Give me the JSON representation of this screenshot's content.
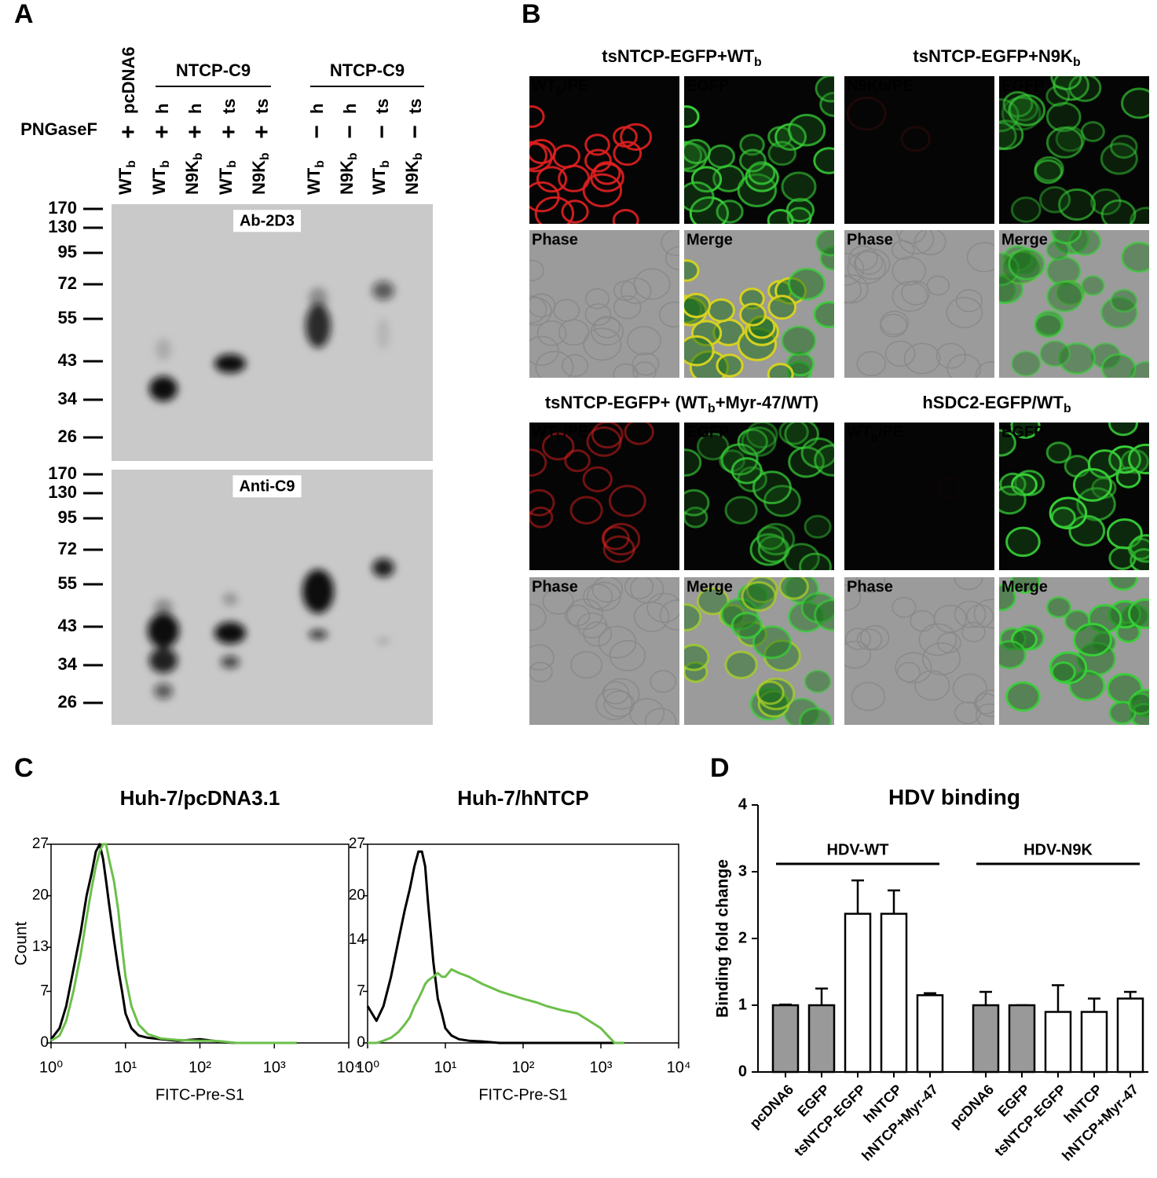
{
  "panel_a": {
    "label": "A",
    "row_label": "PNGaseF",
    "group_headers": [
      {
        "name": "NTCP-C9",
        "from": 1,
        "to": 4
      },
      {
        "name": "NTCP-C9",
        "from": 5,
        "to": 8
      }
    ],
    "lanes": [
      {
        "construct": "pcDNA6",
        "pngase": "+",
        "sample": [
          "WT",
          "b"
        ]
      },
      {
        "construct": "h",
        "pngase": "+",
        "sample": [
          "WT",
          "b"
        ]
      },
      {
        "construct": "h",
        "pngase": "+",
        "sample": [
          "N9K",
          "b"
        ]
      },
      {
        "construct": "ts",
        "pngase": "+",
        "sample": [
          "WT",
          "b"
        ]
      },
      {
        "construct": "ts",
        "pngase": "+",
        "sample": [
          "N9K",
          "b"
        ]
      },
      {
        "construct": "h",
        "pngase": "−",
        "sample": [
          "WT",
          "b"
        ]
      },
      {
        "construct": "h",
        "pngase": "−",
        "sample": [
          "N9K",
          "b"
        ]
      },
      {
        "construct": "ts",
        "pngase": "−",
        "sample": [
          "WT",
          "b"
        ]
      },
      {
        "construct": "ts",
        "pngase": "−",
        "sample": [
          "N9K",
          "b"
        ]
      }
    ],
    "blots": [
      {
        "name": "Ab-2D3",
        "markers": [
          170,
          130,
          95,
          72,
          55,
          43,
          34,
          26
        ]
      },
      {
        "name": "Anti-C9",
        "markers": [
          170,
          130,
          95,
          72,
          55,
          43,
          34,
          26
        ]
      }
    ]
  },
  "panel_b": {
    "label": "B",
    "conditions": [
      {
        "title": [
          "tsNTCP-EGFP+WT",
          "b"
        ],
        "images": [
          [
            "WT",
            "b",
            "/PE"
          ],
          "EGFP",
          "Phase",
          "Merge"
        ]
      },
      {
        "title": [
          "tsNTCP-EGFP+N9K",
          "b"
        ],
        "images": [
          "N9Kb/PE",
          "EGFP",
          "Phase",
          "Merge"
        ]
      },
      {
        "title": [
          "tsNTCP-EGFP+ (WT",
          "b",
          "+Myr-47/WT)"
        ],
        "images": [
          [
            "WT",
            "b",
            "/PE"
          ],
          "EGFP",
          "Phase",
          "Merge"
        ]
      },
      {
        "title": [
          "hSDC2-EGFP/WT",
          "b"
        ],
        "images": [
          [
            "WT",
            "b",
            "/PE"
          ],
          "EGFP",
          "Phase",
          "Merge"
        ]
      }
    ]
  },
  "chart_data": [
    {
      "type": "line",
      "panel_label": "C",
      "title": "Huh-7/pcDNA3.1",
      "xlabel": "FITC-Pre-S1",
      "ylabel": "Count",
      "xscale": "log",
      "xlim": [
        1,
        10000
      ],
      "ylim": [
        0,
        27
      ],
      "xticks": [
        {
          "value": 1,
          "label": "10⁰"
        },
        {
          "value": 10,
          "label": "10¹"
        },
        {
          "value": 100,
          "label": "10²"
        },
        {
          "value": 1000,
          "label": "10³"
        },
        {
          "value": 10000,
          "label": "10⁴"
        }
      ],
      "yticks": [
        0,
        7,
        13,
        20,
        27
      ],
      "x": [
        1,
        1.3,
        1.6,
        2,
        2.5,
        3,
        3.5,
        4,
        4.5,
        5,
        5.5,
        6,
        7,
        8,
        9,
        10,
        12,
        15,
        20,
        30,
        50,
        100,
        150,
        200,
        300,
        500,
        1000,
        1500,
        2000
      ],
      "series": [
        {
          "color": "#000000",
          "values": [
            0.5,
            2,
            5,
            10,
            15,
            20,
            23,
            26,
            27,
            25,
            22,
            19,
            14,
            10,
            7,
            4,
            2,
            1,
            0.7,
            0.5,
            0.3,
            0.5,
            0.3,
            0.1,
            0,
            0,
            0,
            0,
            0
          ]
        },
        {
          "color": "#6cbf4a",
          "values": [
            0.3,
            1,
            3,
            7,
            12,
            17,
            21,
            24,
            26,
            27,
            27,
            25,
            22,
            18,
            13,
            9,
            5,
            2.5,
            1.2,
            0.6,
            0.4,
            0.3,
            0.3,
            0.2,
            0,
            0,
            0,
            0,
            0
          ]
        }
      ]
    },
    {
      "type": "line",
      "title": "Huh-7/hNTCP",
      "xlabel": "FITC-Pre-S1",
      "xscale": "log",
      "xlim": [
        1,
        10000
      ],
      "ylim": [
        0,
        27
      ],
      "xticks": [
        {
          "value": 1,
          "label": "10⁰"
        },
        {
          "value": 10,
          "label": "10¹"
        },
        {
          "value": 100,
          "label": "10²"
        },
        {
          "value": 1000,
          "label": "10³"
        },
        {
          "value": 10000,
          "label": "10⁴"
        }
      ],
      "yticks": [
        0,
        7,
        14,
        20,
        27
      ],
      "x": [
        1,
        1.3,
        1.6,
        2,
        2.5,
        3,
        3.5,
        4,
        4.5,
        5,
        5.5,
        6,
        7,
        8,
        9,
        10,
        12,
        15,
        20,
        30,
        50,
        100,
        150,
        200,
        300,
        500,
        1000,
        1500,
        2000
      ],
      "series": [
        {
          "color": "#000000",
          "values": [
            5,
            3,
            5,
            9,
            14,
            18,
            21,
            24,
            26,
            26,
            24,
            19,
            11,
            6,
            4,
            2,
            1,
            0.5,
            0.3,
            0.2,
            0,
            0,
            0,
            0,
            0,
            0,
            0,
            0,
            0
          ]
        },
        {
          "color": "#6cbf4a",
          "values": [
            0,
            0,
            0.3,
            0.7,
            1.5,
            2.5,
            3.5,
            5,
            6,
            7,
            8,
            8.5,
            9,
            9.5,
            9,
            9,
            10,
            9.5,
            9,
            8,
            7,
            6,
            5.5,
            5,
            4.5,
            4,
            2,
            0,
            0
          ]
        }
      ]
    },
    {
      "type": "bar",
      "panel_label": "D",
      "title": "HDV binding",
      "ylabel": "Binding fold change",
      "ylim": [
        0,
        4
      ],
      "yticks": [
        0,
        1,
        2,
        3,
        4
      ],
      "groups": [
        {
          "name": "HDV-WT",
          "categories": [
            "pcDNA6",
            "EGFP",
            "tsNTCP-EGFP",
            "hNTCP",
            "hNTCP+Myr-47"
          ],
          "values": [
            1.0,
            1.0,
            2.37,
            2.37,
            1.15
          ],
          "errors": [
            0.01,
            0.25,
            0.5,
            0.35,
            0.03
          ],
          "colors": [
            "#999999",
            "#999999",
            "#ffffff",
            "#ffffff",
            "#ffffff"
          ]
        },
        {
          "name": "HDV-N9K",
          "categories": [
            "pcDNA6",
            "EGFP",
            "tsNTCP-EGFP",
            "hNTCP",
            "hNTCP+Myr-47"
          ],
          "values": [
            1.0,
            1.0,
            0.9,
            0.9,
            1.1
          ],
          "errors": [
            0.2,
            0.0,
            0.4,
            0.2,
            0.1
          ],
          "colors": [
            "#999999",
            "#999999",
            "#ffffff",
            "#ffffff",
            "#ffffff"
          ]
        }
      ]
    }
  ]
}
